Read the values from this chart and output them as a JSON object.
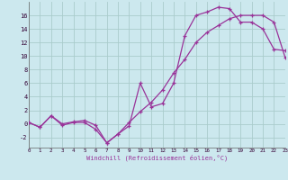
{
  "xlabel": "Windchill (Refroidissement éolien,°C)",
  "background_color": "#cce8ee",
  "grid_color": "#aacccc",
  "line_color": "#993399",
  "line1_x": [
    0,
    1,
    2,
    3,
    4,
    5,
    6,
    7,
    8,
    9,
    10,
    11,
    12,
    13,
    14,
    15,
    16,
    17,
    18,
    19,
    20,
    21,
    22,
    23
  ],
  "line1_y": [
    0.2,
    -0.5,
    1.2,
    -0.2,
    0.2,
    0.2,
    -0.8,
    -2.8,
    -1.5,
    -0.3,
    6.0,
    2.5,
    3.0,
    6.0,
    13.0,
    16.0,
    16.5,
    17.2,
    17.0,
    15.0,
    15.0,
    14.0,
    11.0,
    10.8
  ],
  "line2_x": [
    0,
    1,
    2,
    3,
    4,
    5,
    6,
    7,
    8,
    9,
    10,
    11,
    12,
    13,
    14,
    15,
    16,
    17,
    18,
    19,
    20,
    21,
    22,
    23
  ],
  "line2_y": [
    0.2,
    -0.5,
    1.2,
    0.0,
    0.3,
    0.5,
    -0.2,
    -2.8,
    -1.5,
    0.2,
    1.8,
    3.2,
    5.0,
    7.5,
    9.5,
    12.0,
    13.5,
    14.5,
    15.5,
    16.0,
    16.0,
    16.0,
    15.0,
    9.8
  ],
  "xlim": [
    0,
    23
  ],
  "ylim": [
    -3.5,
    18.0
  ],
  "yticks": [
    -2,
    0,
    2,
    4,
    6,
    8,
    10,
    12,
    14,
    16
  ],
  "xticks": [
    0,
    1,
    2,
    3,
    4,
    5,
    6,
    7,
    8,
    9,
    10,
    11,
    12,
    13,
    14,
    15,
    16,
    17,
    18,
    19,
    20,
    21,
    22,
    23
  ],
  "marker": "+"
}
